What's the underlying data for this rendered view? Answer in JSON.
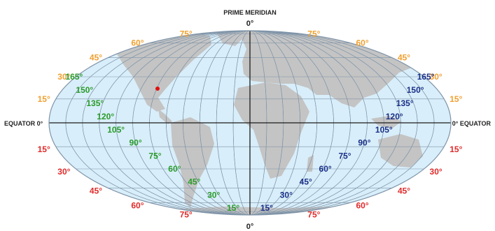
{
  "title": "PRIME MERIDIAN",
  "prime_top_label": "0°",
  "prime_bottom_label": "0°",
  "equator_left_label": "EQUATOR 0°",
  "equator_right_label": "0° EQUATOR",
  "colors": {
    "ocean": "#d8eefa",
    "land": "#c4c4c4",
    "grid": "#7f94a8",
    "axis": "#1b1b1b",
    "north_latitude": "#f0a030",
    "south_latitude": "#e02a2a",
    "west_longitude": "#2a9a2a",
    "east_longitude": "#1a2f86",
    "city_marker": "#e01010"
  },
  "latitude_labels": {
    "north": [
      "15°",
      "30°",
      "45°",
      "60°",
      "75°"
    ],
    "south": [
      "15°",
      "30°",
      "45°",
      "60°",
      "75°"
    ]
  },
  "longitude_labels": {
    "west": [
      "15°",
      "30°",
      "45°",
      "60°",
      "75°",
      "90°",
      "105°",
      "120°",
      "135°",
      "150°",
      "165°"
    ],
    "east": [
      "15°",
      "30°",
      "45°",
      "60°",
      "75°",
      "90°",
      "105°",
      "120°",
      "135°",
      "150°",
      "165°"
    ]
  }
}
